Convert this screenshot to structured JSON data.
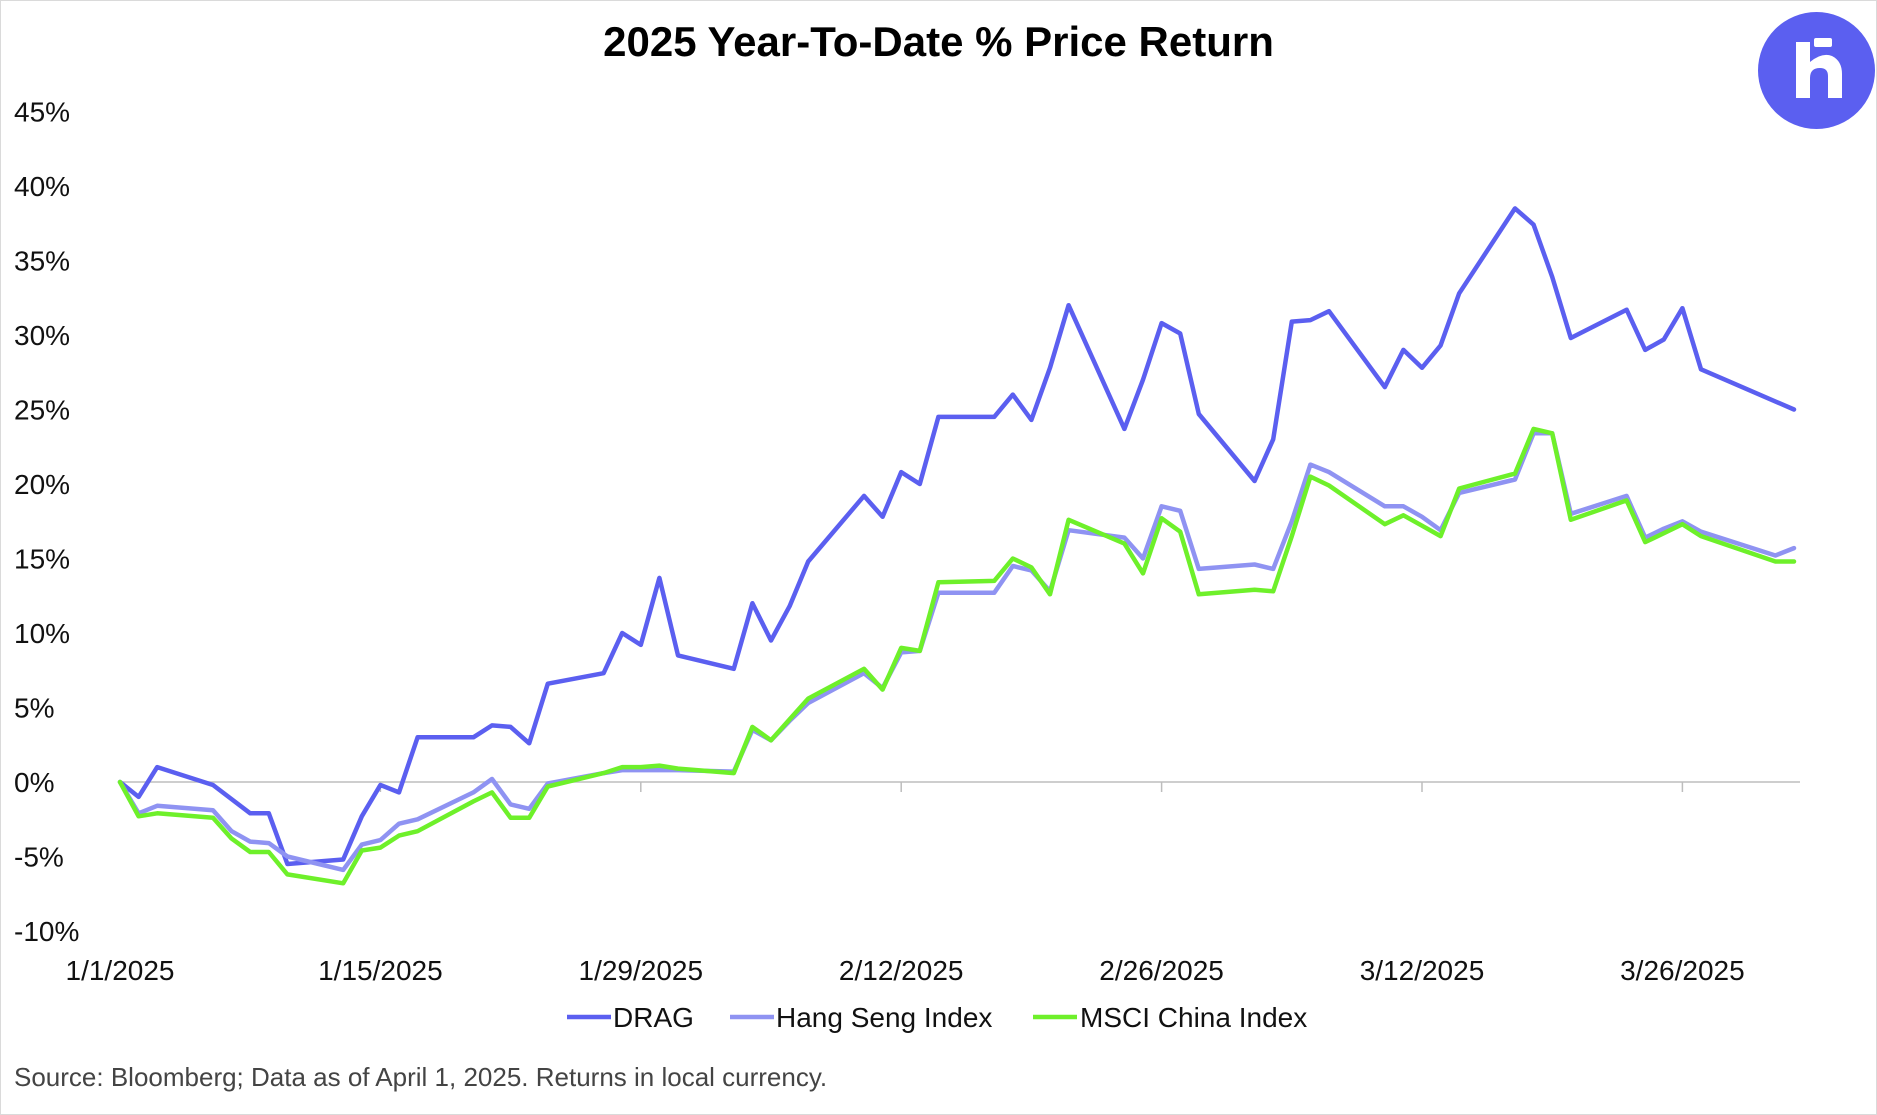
{
  "title": "2025 Year-To-Date % Price Return",
  "source": "Source: Bloomberg; Data as of April 1, 2025. Returns in local currency.",
  "logo": {
    "icon": "r-letter-logo-icon",
    "color": "#5b5ff0"
  },
  "chart_data": {
    "type": "line",
    "title": "2025 Year-To-Date % Price Return",
    "xlabel": "",
    "ylabel": "",
    "x_unit": "days since 1/1/2025",
    "x_ticks": [
      {
        "day": 0,
        "label": "1/1/2025"
      },
      {
        "day": 14,
        "label": "1/15/2025"
      },
      {
        "day": 28,
        "label": "1/29/2025"
      },
      {
        "day": 42,
        "label": "2/12/2025"
      },
      {
        "day": 56,
        "label": "2/26/2025"
      },
      {
        "day": 70,
        "label": "3/12/2025"
      },
      {
        "day": 84,
        "label": "3/26/2025"
      }
    ],
    "xlim": [
      0,
      90.5
    ],
    "y_ticks": [
      {
        "value": 45,
        "label": "45%"
      },
      {
        "value": 40,
        "label": "40%"
      },
      {
        "value": 35,
        "label": "35%"
      },
      {
        "value": 30,
        "label": "30%"
      },
      {
        "value": 25,
        "label": "25%"
      },
      {
        "value": 20,
        "label": "20%"
      },
      {
        "value": 15,
        "label": "15%"
      },
      {
        "value": 10,
        "label": "10%"
      },
      {
        "value": 5,
        "label": "5%"
      },
      {
        "value": 0,
        "label": "0%"
      },
      {
        "value": -5,
        "label": "-5%"
      },
      {
        "value": -10,
        "label": "-10%"
      }
    ],
    "ylim": [
      -10,
      45
    ],
    "grid": false,
    "legend_position": "bottom-center",
    "series": [
      {
        "name": "DRAG",
        "color": "#5b5ff0",
        "points": [
          [
            0,
            0
          ],
          [
            1,
            -1.0
          ],
          [
            2,
            1.0
          ],
          [
            5,
            -0.2
          ],
          [
            7,
            -2.1
          ],
          [
            8,
            -2.1
          ],
          [
            9,
            -5.5
          ],
          [
            12,
            -5.2
          ],
          [
            13,
            -2.3
          ],
          [
            14,
            -0.2
          ],
          [
            15,
            -0.7
          ],
          [
            16,
            3.0
          ],
          [
            19,
            3.0
          ],
          [
            20,
            3.8
          ],
          [
            21,
            3.7
          ],
          [
            22,
            2.6
          ],
          [
            23,
            6.6
          ],
          [
            26,
            7.3
          ],
          [
            27,
            10.0
          ],
          [
            28,
            9.2
          ],
          [
            29,
            13.7
          ],
          [
            30,
            8.5
          ],
          [
            33,
            7.6
          ],
          [
            34,
            12.0
          ],
          [
            35,
            9.5
          ],
          [
            36,
            11.8
          ],
          [
            37,
            14.8
          ],
          [
            40,
            19.2
          ],
          [
            41,
            17.8
          ],
          [
            42,
            20.8
          ],
          [
            43,
            20.0
          ],
          [
            44,
            24.5
          ],
          [
            47,
            24.5
          ],
          [
            48,
            26.0
          ],
          [
            49,
            24.3
          ],
          [
            50,
            27.8
          ],
          [
            51,
            32.0
          ],
          [
            54,
            23.7
          ],
          [
            55,
            27.0
          ],
          [
            56,
            30.8
          ],
          [
            57,
            30.1
          ],
          [
            58,
            24.7
          ],
          [
            61,
            20.2
          ],
          [
            62,
            23.0
          ],
          [
            63,
            30.9
          ],
          [
            64,
            31.0
          ],
          [
            65,
            31.6
          ],
          [
            68,
            26.5
          ],
          [
            69,
            29.0
          ],
          [
            70,
            27.8
          ],
          [
            71,
            29.3
          ],
          [
            72,
            32.8
          ],
          [
            75,
            38.5
          ],
          [
            76,
            37.4
          ],
          [
            77,
            33.9
          ],
          [
            78,
            29.8
          ],
          [
            81,
            31.7
          ],
          [
            82,
            29.0
          ],
          [
            83,
            29.7
          ],
          [
            84,
            31.8
          ],
          [
            85,
            27.7
          ],
          [
            90,
            25.0
          ]
        ]
      },
      {
        "name": "Hang Seng Index",
        "color": "#8f93f2",
        "points": [
          [
            0,
            0
          ],
          [
            1,
            -2.1
          ],
          [
            2,
            -1.6
          ],
          [
            5,
            -1.9
          ],
          [
            6,
            -3.3
          ],
          [
            7,
            -4.0
          ],
          [
            8,
            -4.1
          ],
          [
            9,
            -5.0
          ],
          [
            12,
            -5.9
          ],
          [
            13,
            -4.2
          ],
          [
            14,
            -3.9
          ],
          [
            15,
            -2.8
          ],
          [
            16,
            -2.5
          ],
          [
            19,
            -0.7
          ],
          [
            20,
            0.2
          ],
          [
            21,
            -1.5
          ],
          [
            22,
            -1.8
          ],
          [
            23,
            -0.1
          ],
          [
            26,
            0.6
          ],
          [
            27,
            0.8
          ],
          [
            29,
            0.8
          ],
          [
            30,
            0.8
          ],
          [
            33,
            0.7
          ],
          [
            34,
            3.5
          ],
          [
            35,
            2.8
          ],
          [
            36,
            4.1
          ],
          [
            37,
            5.3
          ],
          [
            40,
            7.3
          ],
          [
            41,
            6.3
          ],
          [
            42,
            8.7
          ],
          [
            43,
            8.8
          ],
          [
            44,
            12.7
          ],
          [
            47,
            12.7
          ],
          [
            48,
            14.5
          ],
          [
            49,
            14.2
          ],
          [
            50,
            12.8
          ],
          [
            51,
            16.9
          ],
          [
            54,
            16.4
          ],
          [
            55,
            15.0
          ],
          [
            56,
            18.5
          ],
          [
            57,
            18.2
          ],
          [
            58,
            14.3
          ],
          [
            61,
            14.6
          ],
          [
            62,
            14.3
          ],
          [
            63,
            17.5
          ],
          [
            64,
            21.3
          ],
          [
            65,
            20.8
          ],
          [
            68,
            18.5
          ],
          [
            69,
            18.5
          ],
          [
            70,
            17.8
          ],
          [
            71,
            16.9
          ],
          [
            72,
            19.4
          ],
          [
            75,
            20.3
          ],
          [
            76,
            23.4
          ],
          [
            77,
            23.4
          ],
          [
            78,
            18.0
          ],
          [
            81,
            19.2
          ],
          [
            82,
            16.4
          ],
          [
            83,
            17.0
          ],
          [
            84,
            17.5
          ],
          [
            85,
            16.8
          ],
          [
            89,
            15.2
          ],
          [
            90,
            15.7
          ]
        ]
      },
      {
        "name": "MSCI China Index",
        "color": "#6ef02a",
        "points": [
          [
            0,
            0
          ],
          [
            1,
            -2.3
          ],
          [
            2,
            -2.1
          ],
          [
            5,
            -2.4
          ],
          [
            6,
            -3.8
          ],
          [
            7,
            -4.7
          ],
          [
            8,
            -4.7
          ],
          [
            9,
            -6.2
          ],
          [
            12,
            -6.8
          ],
          [
            13,
            -4.6
          ],
          [
            14,
            -4.4
          ],
          [
            15,
            -3.6
          ],
          [
            16,
            -3.3
          ],
          [
            19,
            -1.3
          ],
          [
            20,
            -0.7
          ],
          [
            21,
            -2.4
          ],
          [
            22,
            -2.4
          ],
          [
            23,
            -0.3
          ],
          [
            26,
            0.6
          ],
          [
            27,
            1.0
          ],
          [
            28,
            1.0
          ],
          [
            29,
            1.1
          ],
          [
            30,
            0.9
          ],
          [
            33,
            0.6
          ],
          [
            34,
            3.7
          ],
          [
            35,
            2.8
          ],
          [
            36,
            4.2
          ],
          [
            37,
            5.6
          ],
          [
            40,
            7.6
          ],
          [
            41,
            6.2
          ],
          [
            42,
            9.0
          ],
          [
            43,
            8.8
          ],
          [
            44,
            13.4
          ],
          [
            47,
            13.5
          ],
          [
            48,
            15.0
          ],
          [
            49,
            14.4
          ],
          [
            50,
            12.6
          ],
          [
            51,
            17.6
          ],
          [
            54,
            16.0
          ],
          [
            55,
            14.0
          ],
          [
            56,
            17.7
          ],
          [
            57,
            16.8
          ],
          [
            58,
            12.6
          ],
          [
            61,
            12.9
          ],
          [
            62,
            12.8
          ],
          [
            63,
            16.5
          ],
          [
            64,
            20.5
          ],
          [
            65,
            19.9
          ],
          [
            68,
            17.3
          ],
          [
            69,
            17.9
          ],
          [
            70,
            17.2
          ],
          [
            71,
            16.5
          ],
          [
            72,
            19.7
          ],
          [
            75,
            20.7
          ],
          [
            76,
            23.7
          ],
          [
            77,
            23.4
          ],
          [
            78,
            17.6
          ],
          [
            81,
            18.9
          ],
          [
            82,
            16.1
          ],
          [
            83,
            16.7
          ],
          [
            84,
            17.3
          ],
          [
            85,
            16.5
          ],
          [
            89,
            14.8
          ],
          [
            90,
            14.8
          ]
        ]
      }
    ]
  }
}
